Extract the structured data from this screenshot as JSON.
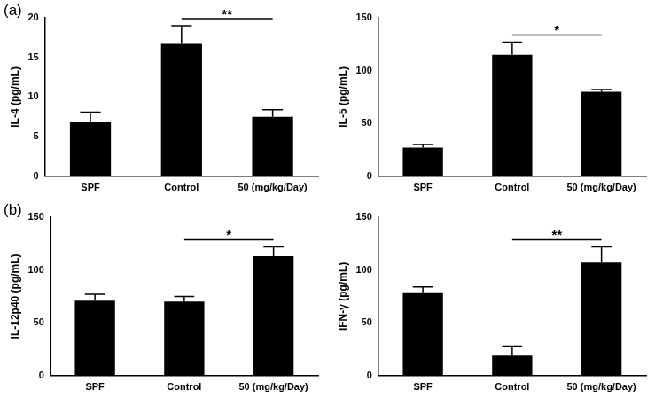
{
  "chart_data": [
    {
      "type": "bar",
      "panel_label": "(a)",
      "y_label": "IL-4 (pg/mL)",
      "categories": [
        "SPF",
        "Control",
        "50 (mg/kg/Day)"
      ],
      "values": [
        6.8,
        16.7,
        7.5
      ],
      "errors": [
        1.3,
        2.3,
        0.9
      ],
      "color": "#000000",
      "ylim": [
        0,
        20
      ],
      "yticks": [
        0,
        5,
        10,
        15,
        20
      ],
      "grid": false,
      "annotations": [
        {
          "text": "**",
          "from": "Control",
          "to": "50 (mg/kg/Day)"
        }
      ]
    },
    {
      "type": "bar",
      "y_label": "IL-5 (pg/mL)",
      "categories": [
        "SPF",
        "Control",
        "50 (mg/kg/Day)"
      ],
      "values": [
        27,
        115,
        80
      ],
      "errors": [
        3,
        12,
        2
      ],
      "color": "#000000",
      "ylim": [
        0,
        150
      ],
      "yticks": [
        0,
        50,
        100,
        150
      ],
      "grid": false,
      "annotations": [
        {
          "text": "*",
          "from": "Control",
          "to": "50 (mg/kg/Day)"
        }
      ]
    },
    {
      "type": "bar",
      "panel_label": "(b)",
      "y_label": "IL-12p40 (pg/mL)",
      "categories": [
        "SPF",
        "Control",
        "50 (mg/kg/Day)"
      ],
      "values": [
        71,
        70,
        113
      ],
      "errors": [
        6,
        5,
        9
      ],
      "color": "#000000",
      "ylim": [
        0,
        150
      ],
      "yticks": [
        0,
        50,
        100,
        150
      ],
      "grid": false,
      "annotations": [
        {
          "text": "*",
          "from": "Control",
          "to": "50 (mg/kg/Day)"
        }
      ]
    },
    {
      "type": "bar",
      "y_label": "IFN-γ (pg/mL)",
      "categories": [
        "SPF",
        "Control",
        "50 (mg/kg/Day)"
      ],
      "values": [
        79,
        19,
        107
      ],
      "errors": [
        5,
        9,
        15
      ],
      "color": "#000000",
      "ylim": [
        0,
        150
      ],
      "yticks": [
        0,
        50,
        100,
        150
      ],
      "grid": false,
      "annotations": [
        {
          "text": "**",
          "from": "Control",
          "to": "50 (mg/kg/Day)"
        }
      ]
    }
  ]
}
